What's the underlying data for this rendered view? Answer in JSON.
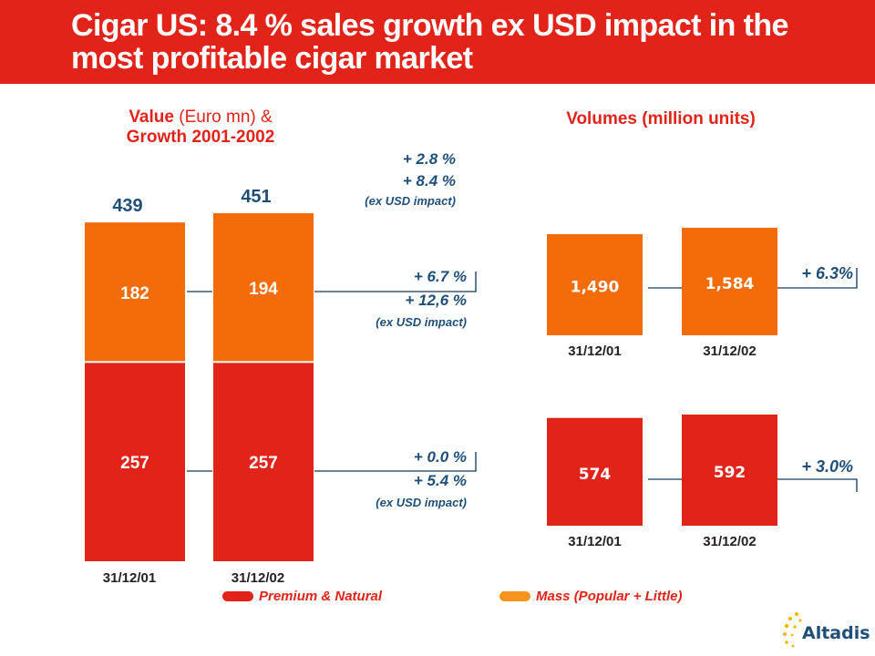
{
  "header": {
    "title": "Cigar US: 8.4 % sales growth ex USD impact in the most profitable cigar market"
  },
  "value_section": {
    "title_bold": "Value",
    "title_rest": " (Euro mn) &",
    "title_line2": "Growth 2001-2002"
  },
  "volume_section": {
    "title_bold": "Volumes",
    "title_rest": " (million units)"
  },
  "growth_total": {
    "line1": "+ 2.8 %",
    "line2": "+ 8.4 %",
    "line3": "(ex USD impact)"
  },
  "growth_mass": {
    "line1": "+ 6.7 %",
    "line2": "+ 12,6 %",
    "line3": "(ex USD impact)"
  },
  "growth_premium": {
    "line1": "+ 0.0 %",
    "line2": "+ 5.4 %",
    "line3": "(ex USD impact)"
  },
  "volume_growth_mass": "+ 6.3%",
  "volume_growth_premium": "+ 3.0%",
  "legend": {
    "premium": "Premium & Natural",
    "mass": "Mass (Popular + Little)"
  },
  "logo": {
    "text": "Altadis",
    "icon": "star-cluster-icon"
  },
  "colors": {
    "red": "#e2231a",
    "orange": "#f46b0a",
    "blue": "#1f4e79",
    "line": "#3c5a78"
  },
  "chart_data": [
    {
      "type": "bar",
      "stacked": true,
      "categories": [
        "31/12/01",
        "31/12/02"
      ],
      "series": [
        {
          "name": "Premium & Natural",
          "values": [
            257,
            257
          ]
        },
        {
          "name": "Mass (Popular + Little)",
          "values": [
            182,
            194
          ]
        }
      ],
      "totals": [
        439,
        451
      ],
      "total_labels": [
        "439",
        "451"
      ],
      "value_labels": {
        "premium": [
          "257",
          "257"
        ],
        "mass": [
          "182",
          "194"
        ]
      },
      "ylim": [
        0,
        451
      ]
    },
    {
      "type": "bar",
      "categories": [
        "31/12/01",
        "31/12/02"
      ],
      "series": [
        {
          "name": "Mass (Popular + Little)",
          "values": [
            1490,
            1584
          ]
        }
      ],
      "value_labels": [
        "1,490",
        "1,584"
      ],
      "growth": "+ 6.3%"
    },
    {
      "type": "bar",
      "categories": [
        "31/12/01",
        "31/12/02"
      ],
      "series": [
        {
          "name": "Premium & Natural",
          "values": [
            574,
            592
          ]
        }
      ],
      "value_labels": [
        "574",
        "592"
      ],
      "growth": "+ 3.0%"
    }
  ]
}
